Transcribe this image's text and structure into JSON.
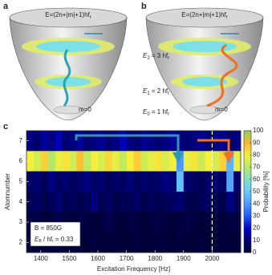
{
  "panel_a": {
    "label": "a",
    "formula": "E=(2n+|m|+1)hf",
    "formula_sub": "r",
    "state_label": "m=0"
  },
  "panel_b": {
    "label": "b",
    "formula": "E=(2n+|m|+1)hf",
    "formula_sub": "r",
    "state_label": "m=0"
  },
  "energy_levels": [
    {
      "symbol": "E",
      "index": "2",
      "text": " = 3 hf",
      "sub": "r"
    },
    {
      "symbol": "E",
      "index": "1",
      "text": " = 2 hf",
      "sub": "r"
    },
    {
      "symbol": "E",
      "index": "0",
      "text": " = 1 hf",
      "sub": "r"
    }
  ],
  "chart_data": {
    "type": "heatmap",
    "panel_label": "c",
    "xlabel": "Excitation Frequency [Hz]",
    "ylabel": "Atomnumber",
    "colorbar_label": "Probability [%]",
    "x_edges": [
      1350,
      1375,
      1400,
      1425,
      1450,
      1475,
      1500,
      1525,
      1550,
      1575,
      1600,
      1625,
      1650,
      1675,
      1700,
      1725,
      1750,
      1775,
      1800,
      1825,
      1850,
      1875,
      1900,
      1925,
      1950,
      1975,
      2000,
      2025,
      2050,
      2075,
      2100
    ],
    "y": [
      7,
      6,
      5,
      4,
      3,
      2
    ],
    "z": [
      [
        12,
        10,
        15,
        12,
        18,
        10,
        12,
        15,
        10,
        12,
        14,
        10,
        12,
        18,
        12,
        10,
        14,
        12,
        10,
        12,
        15,
        12,
        10,
        12,
        14,
        10,
        12,
        14,
        10,
        12
      ],
      [
        80,
        75,
        85,
        70,
        78,
        82,
        75,
        88,
        72,
        80,
        76,
        84,
        78,
        72,
        80,
        86,
        74,
        78,
        82,
        76,
        80,
        40,
        78,
        82,
        74,
        80,
        76,
        85,
        45,
        78
      ],
      [
        8,
        10,
        6,
        12,
        8,
        10,
        7,
        9,
        12,
        8,
        10,
        6,
        9,
        8,
        11,
        7,
        10,
        8,
        9,
        12,
        10,
        48,
        10,
        8,
        6,
        9,
        10,
        8,
        42,
        9
      ],
      [
        5,
        8,
        4,
        6,
        10,
        5,
        7,
        4,
        6,
        12,
        5,
        8,
        4,
        6,
        5,
        9,
        4,
        7,
        5,
        6,
        8,
        10,
        5,
        4,
        6,
        8,
        5,
        4,
        12,
        6
      ],
      [
        2,
        3,
        1,
        2,
        4,
        2,
        1,
        3,
        2,
        1,
        2,
        4,
        2,
        1,
        3,
        2,
        1,
        2,
        3,
        2,
        1,
        2,
        3,
        2,
        1,
        2,
        2,
        1,
        3,
        2
      ],
      [
        1,
        2,
        1,
        1,
        2,
        1,
        2,
        1,
        1,
        2,
        1,
        1,
        2,
        1,
        1,
        2,
        1,
        1,
        2,
        1,
        1,
        2,
        1,
        1,
        2,
        1,
        1,
        2,
        1,
        1
      ]
    ],
    "xlim": [
      1350,
      2100
    ],
    "xticks": [
      1400,
      1500,
      1600,
      1700,
      1800,
      1900,
      2000
    ],
    "ylim": [
      1.5,
      7.5
    ],
    "yticks": [
      2,
      3,
      4,
      5,
      6,
      7
    ],
    "clim": [
      0,
      100
    ],
    "cticks": [
      0,
      10,
      20,
      30,
      40,
      50,
      60,
      70,
      80,
      90,
      100
    ],
    "colormap": [
      "#000033",
      "#00006e",
      "#0000c8",
      "#1e5aff",
      "#4c98ff",
      "#6cc8ff",
      "#7ee0c8",
      "#b4e868",
      "#f4f03c",
      "#ffb432",
      "#8ed25a"
    ],
    "vline": 2000,
    "annotation": {
      "line1": "B = 850G",
      "symbol": "E",
      "sub": "B",
      "text": " / hf",
      "sub2": "r",
      "value": " = 0.33"
    }
  }
}
